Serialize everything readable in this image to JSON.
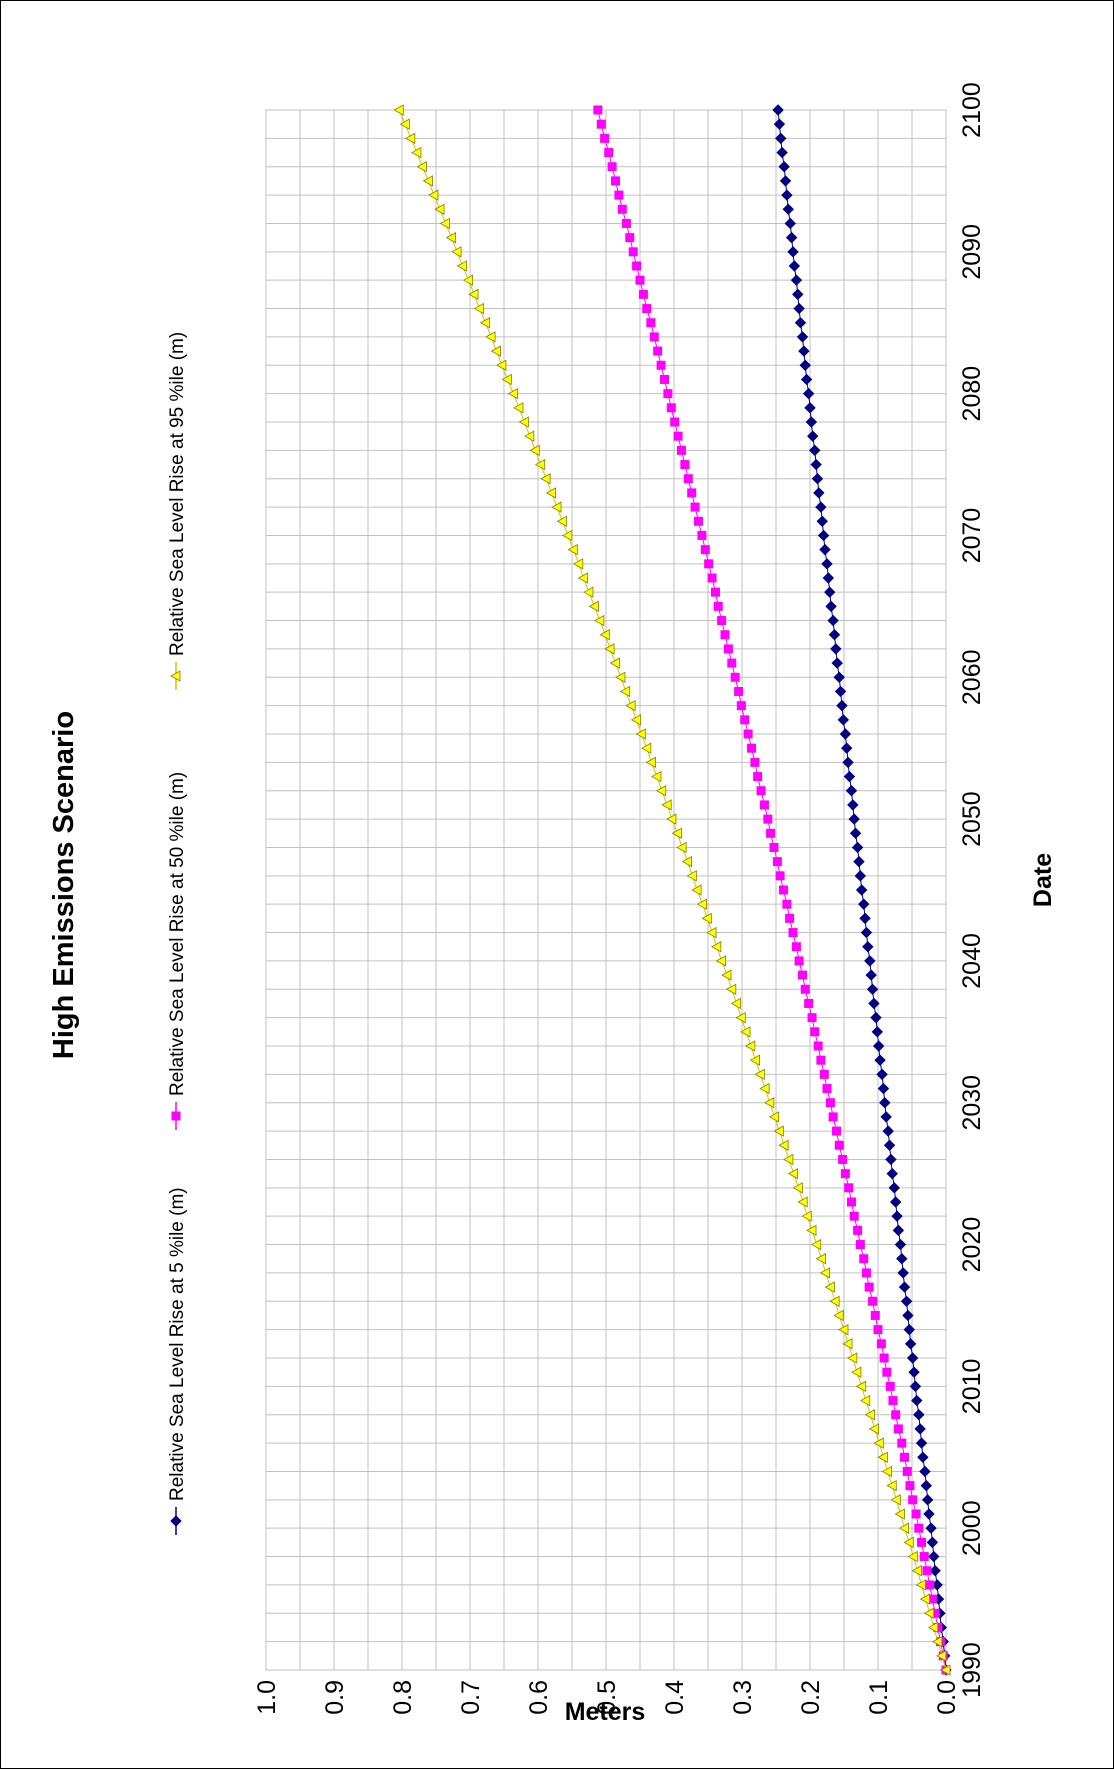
{
  "chart_data": {
    "type": "line",
    "title": "High Emissions Scenario",
    "xlabel": "Date",
    "ylabel": "Meters",
    "xlim": [
      1990,
      2100
    ],
    "ylim": [
      0.0,
      1.0
    ],
    "x_ticks": [
      "1990",
      "2000",
      "2010",
      "2020",
      "2030",
      "2040",
      "2050",
      "2060",
      "2070",
      "2080",
      "2090",
      "2100"
    ],
    "y_ticks": [
      "0.0",
      "0.1",
      "0.2",
      "0.3",
      "0.4",
      "0.5",
      "0.6",
      "0.7",
      "0.8",
      "0.9",
      "1.0"
    ],
    "grid": true,
    "legend_position": "top",
    "x_start": 1990,
    "x_end": 2100,
    "x_step": 1,
    "series": [
      {
        "name": "Relative Sea Level  Rise at 5 %ile (m)",
        "color": "#000080",
        "marker": "diamond",
        "values": [
          0.0,
          0.002,
          0.004,
          0.007,
          0.009,
          0.011,
          0.013,
          0.016,
          0.018,
          0.02,
          0.022,
          0.025,
          0.027,
          0.029,
          0.031,
          0.034,
          0.036,
          0.038,
          0.04,
          0.043,
          0.045,
          0.047,
          0.049,
          0.052,
          0.054,
          0.056,
          0.058,
          0.061,
          0.063,
          0.065,
          0.067,
          0.07,
          0.072,
          0.074,
          0.076,
          0.079,
          0.081,
          0.083,
          0.085,
          0.088,
          0.09,
          0.092,
          0.094,
          0.097,
          0.099,
          0.101,
          0.103,
          0.106,
          0.108,
          0.11,
          0.112,
          0.115,
          0.117,
          0.119,
          0.121,
          0.124,
          0.126,
          0.128,
          0.13,
          0.133,
          0.135,
          0.137,
          0.139,
          0.142,
          0.144,
          0.146,
          0.148,
          0.151,
          0.153,
          0.155,
          0.157,
          0.16,
          0.162,
          0.164,
          0.166,
          0.169,
          0.171,
          0.173,
          0.175,
          0.178,
          0.18,
          0.182,
          0.184,
          0.187,
          0.189,
          0.191,
          0.193,
          0.196,
          0.198,
          0.2,
          0.202,
          0.205,
          0.207,
          0.209,
          0.211,
          0.214,
          0.216,
          0.218,
          0.22,
          0.223,
          0.225,
          0.227,
          0.229,
          0.232,
          0.234,
          0.236,
          0.238,
          0.241,
          0.243,
          0.245,
          0.247
        ]
      },
      {
        "name": "Relative Sea Level  Rise at 50 %ile (m)",
        "color": "#ff00ff",
        "marker": "square",
        "values": [
          0.0,
          0.004,
          0.008,
          0.012,
          0.016,
          0.02,
          0.024,
          0.028,
          0.032,
          0.036,
          0.04,
          0.044,
          0.049,
          0.053,
          0.057,
          0.061,
          0.065,
          0.07,
          0.074,
          0.078,
          0.082,
          0.087,
          0.091,
          0.095,
          0.1,
          0.104,
          0.108,
          0.113,
          0.117,
          0.121,
          0.126,
          0.13,
          0.135,
          0.139,
          0.143,
          0.148,
          0.152,
          0.157,
          0.161,
          0.166,
          0.17,
          0.175,
          0.179,
          0.184,
          0.188,
          0.193,
          0.197,
          0.202,
          0.207,
          0.211,
          0.216,
          0.22,
          0.225,
          0.23,
          0.234,
          0.239,
          0.244,
          0.248,
          0.253,
          0.258,
          0.262,
          0.267,
          0.272,
          0.277,
          0.281,
          0.286,
          0.291,
          0.296,
          0.301,
          0.305,
          0.31,
          0.315,
          0.32,
          0.325,
          0.33,
          0.335,
          0.339,
          0.344,
          0.349,
          0.354,
          0.359,
          0.364,
          0.369,
          0.374,
          0.379,
          0.384,
          0.389,
          0.394,
          0.399,
          0.404,
          0.409,
          0.414,
          0.419,
          0.424,
          0.429,
          0.434,
          0.44,
          0.445,
          0.45,
          0.455,
          0.46,
          0.465,
          0.47,
          0.476,
          0.481,
          0.486,
          0.491,
          0.496,
          0.502,
          0.507,
          0.512
        ]
      },
      {
        "name": "Relative Sea Level  Rise at 95 %ile (m)",
        "color": "#ffff00",
        "marker": "triangle",
        "values": [
          0.0,
          0.006,
          0.012,
          0.018,
          0.024,
          0.03,
          0.036,
          0.042,
          0.048,
          0.054,
          0.061,
          0.067,
          0.073,
          0.079,
          0.086,
          0.092,
          0.098,
          0.105,
          0.111,
          0.118,
          0.124,
          0.131,
          0.137,
          0.144,
          0.15,
          0.157,
          0.163,
          0.17,
          0.177,
          0.183,
          0.19,
          0.197,
          0.204,
          0.21,
          0.217,
          0.224,
          0.231,
          0.238,
          0.245,
          0.252,
          0.259,
          0.266,
          0.273,
          0.28,
          0.287,
          0.294,
          0.301,
          0.308,
          0.315,
          0.322,
          0.33,
          0.337,
          0.344,
          0.351,
          0.358,
          0.366,
          0.373,
          0.38,
          0.388,
          0.395,
          0.403,
          0.41,
          0.418,
          0.425,
          0.433,
          0.44,
          0.448,
          0.455,
          0.463,
          0.471,
          0.478,
          0.486,
          0.494,
          0.501,
          0.509,
          0.517,
          0.525,
          0.533,
          0.54,
          0.548,
          0.556,
          0.564,
          0.572,
          0.58,
          0.588,
          0.596,
          0.604,
          0.612,
          0.62,
          0.628,
          0.636,
          0.645,
          0.653,
          0.661,
          0.669,
          0.677,
          0.686,
          0.694,
          0.702,
          0.711,
          0.719,
          0.727,
          0.736,
          0.744,
          0.753,
          0.761,
          0.77,
          0.778,
          0.787,
          0.795,
          0.804
        ]
      }
    ]
  }
}
